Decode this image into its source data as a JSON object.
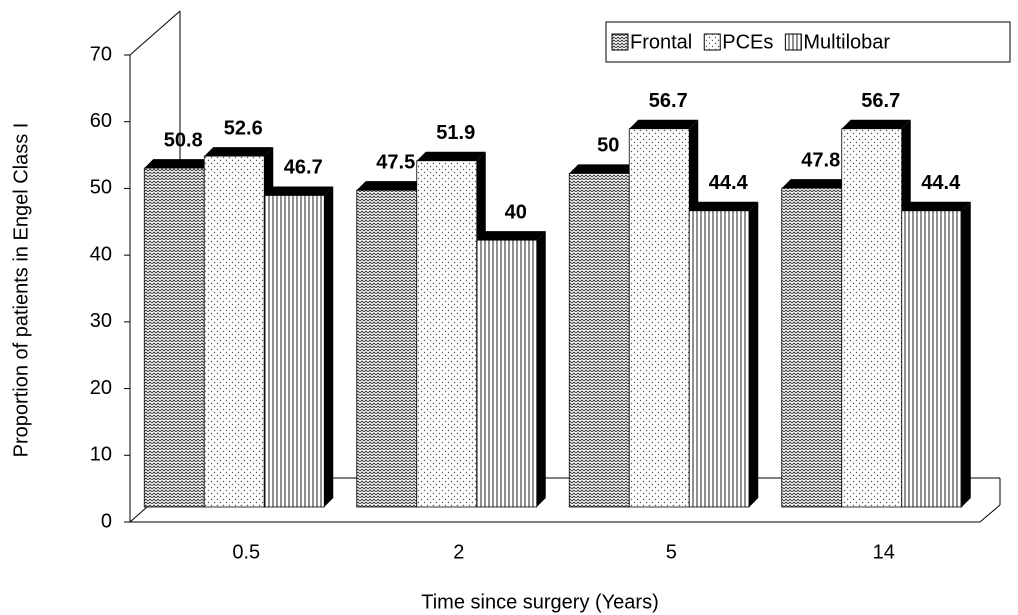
{
  "chart_data": {
    "type": "bar3d",
    "x_label": "Time since surgery (Years)",
    "y_label": "Proportion of patients in Engel Class I",
    "categories": [
      "0.5",
      "2",
      "5",
      "14"
    ],
    "series": [
      {
        "name": "Frontal",
        "pattern": "zigzag",
        "values": [
          50.8,
          47.5,
          50,
          47.8
        ]
      },
      {
        "name": "PCEs",
        "pattern": "dots",
        "values": [
          52.6,
          51.9,
          56.7,
          56.7
        ]
      },
      {
        "name": "Multilobar",
        "pattern": "vlines",
        "values": [
          46.7,
          40,
          44.4,
          44.4
        ]
      }
    ],
    "ylim": [
      0,
      70
    ],
    "yticks": [
      0,
      10,
      20,
      30,
      40,
      50,
      60,
      70
    ],
    "legend": "top-right"
  }
}
